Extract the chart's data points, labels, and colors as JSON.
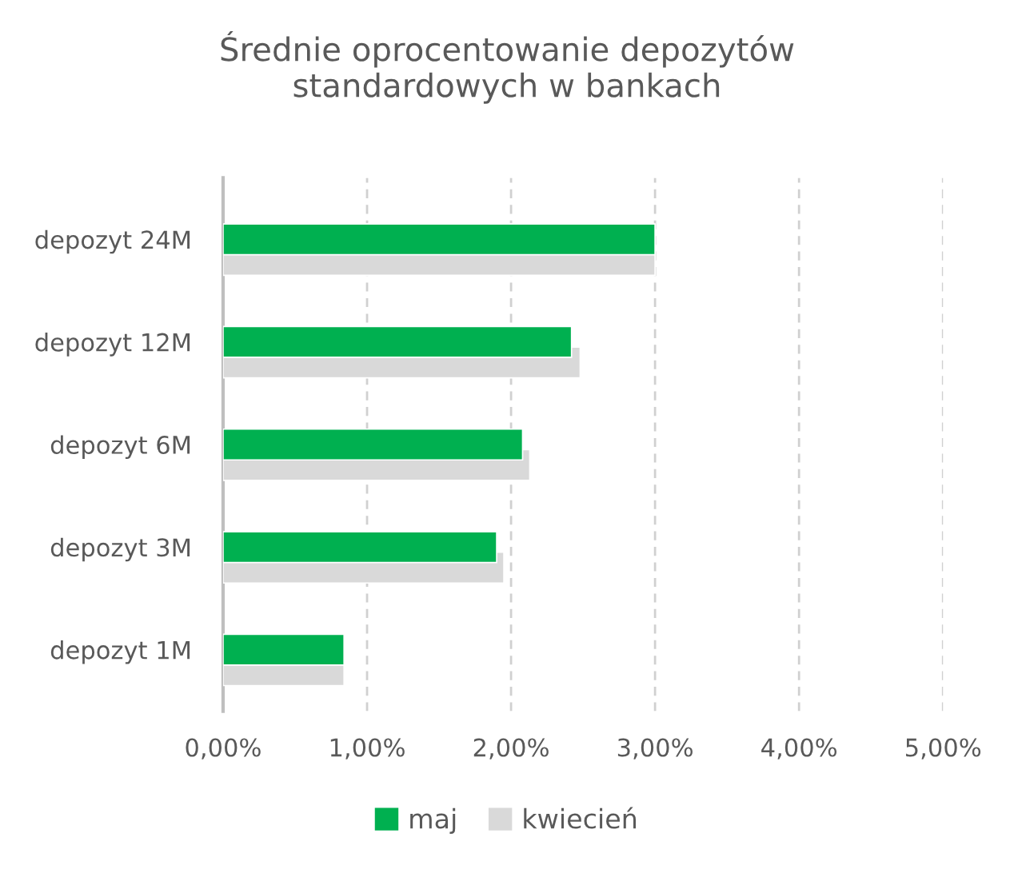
{
  "chart_data": {
    "type": "bar",
    "orientation": "horizontal",
    "title": "Średnie oprocentowanie depozytów\nstandardowych w bankach",
    "categories": [
      "depozyt 24M",
      "depozyt 12M",
      "depozyt 6M",
      "depozyt 3M",
      "depozyt 1M"
    ],
    "series": [
      {
        "name": "maj",
        "color": "#00b050",
        "values": [
          3.0,
          2.42,
          2.08,
          1.9,
          0.84
        ]
      },
      {
        "name": "kwiecień",
        "color": "#d9d9d9",
        "values": [
          3.0,
          2.48,
          2.13,
          1.95,
          0.84
        ]
      }
    ],
    "xlim": [
      0,
      5
    ],
    "xticks": [
      {
        "value": 0,
        "label": "0,00%"
      },
      {
        "value": 1,
        "label": "1,00%"
      },
      {
        "value": 2,
        "label": "2,00%"
      },
      {
        "value": 3,
        "label": "3,00%"
      },
      {
        "value": 4,
        "label": "4,00%"
      },
      {
        "value": 5,
        "label": "5,00%"
      }
    ],
    "grid": "x",
    "line_style": "dashed",
    "legend": "bottom"
  }
}
